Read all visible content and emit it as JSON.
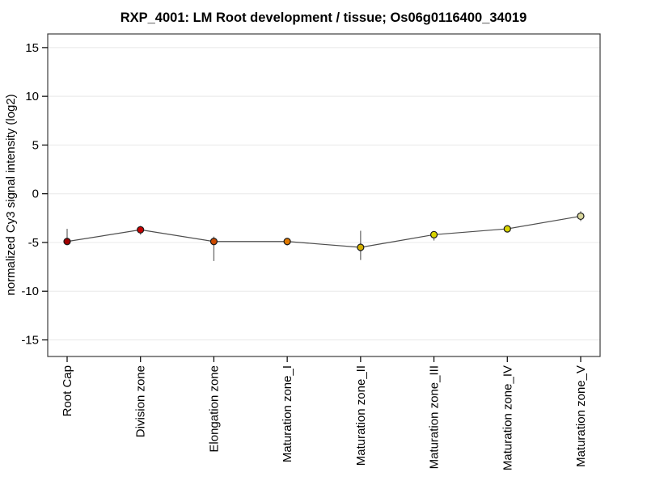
{
  "chart_data": {
    "type": "line",
    "title": "RXP_4001: LM Root development / tissue; Os06g0116400_34019",
    "ylabel": "normalized Cy3 signal intensity (log2)",
    "xlabel": "",
    "categories": [
      "Root Cap",
      "Division zone",
      "Elongation zone",
      "Maturation zone_I",
      "Maturation zone_II",
      "Maturation zone_III",
      "Maturation zone_IV",
      "Maturation zone_V"
    ],
    "series": [
      {
        "name": "normalized Cy3 signal intensity (log2)",
        "values": [
          -4.9,
          -3.7,
          -4.9,
          -4.9,
          -5.5,
          -4.2,
          -3.6,
          -2.3
        ],
        "error_high": [
          -3.6,
          -3.3,
          -4.4,
          -4.6,
          -3.8,
          -3.9,
          -3.3,
          -1.8
        ],
        "error_low": [
          -5.2,
          -4.2,
          -6.9,
          -5.3,
          -6.8,
          -4.8,
          -3.9,
          -2.8
        ],
        "point_colors": [
          "#a00000",
          "#c40000",
          "#cc4a00",
          "#e07800",
          "#d4b000",
          "#d8d400",
          "#d8d400",
          "#d9d79c"
        ]
      }
    ],
    "yticks": [
      15,
      10,
      5,
      0,
      -5,
      -10,
      -15
    ],
    "ylim": [
      -16.7,
      16.4
    ],
    "grid": true,
    "legend": "none",
    "colors": {
      "line": "#4d4d4d",
      "errorbar": "#6e6e6e",
      "gridline": "#e8e8e8",
      "frame": "#3c3c3c",
      "marker_outline": "#1a1a1a",
      "background": "#ffffff"
    }
  }
}
